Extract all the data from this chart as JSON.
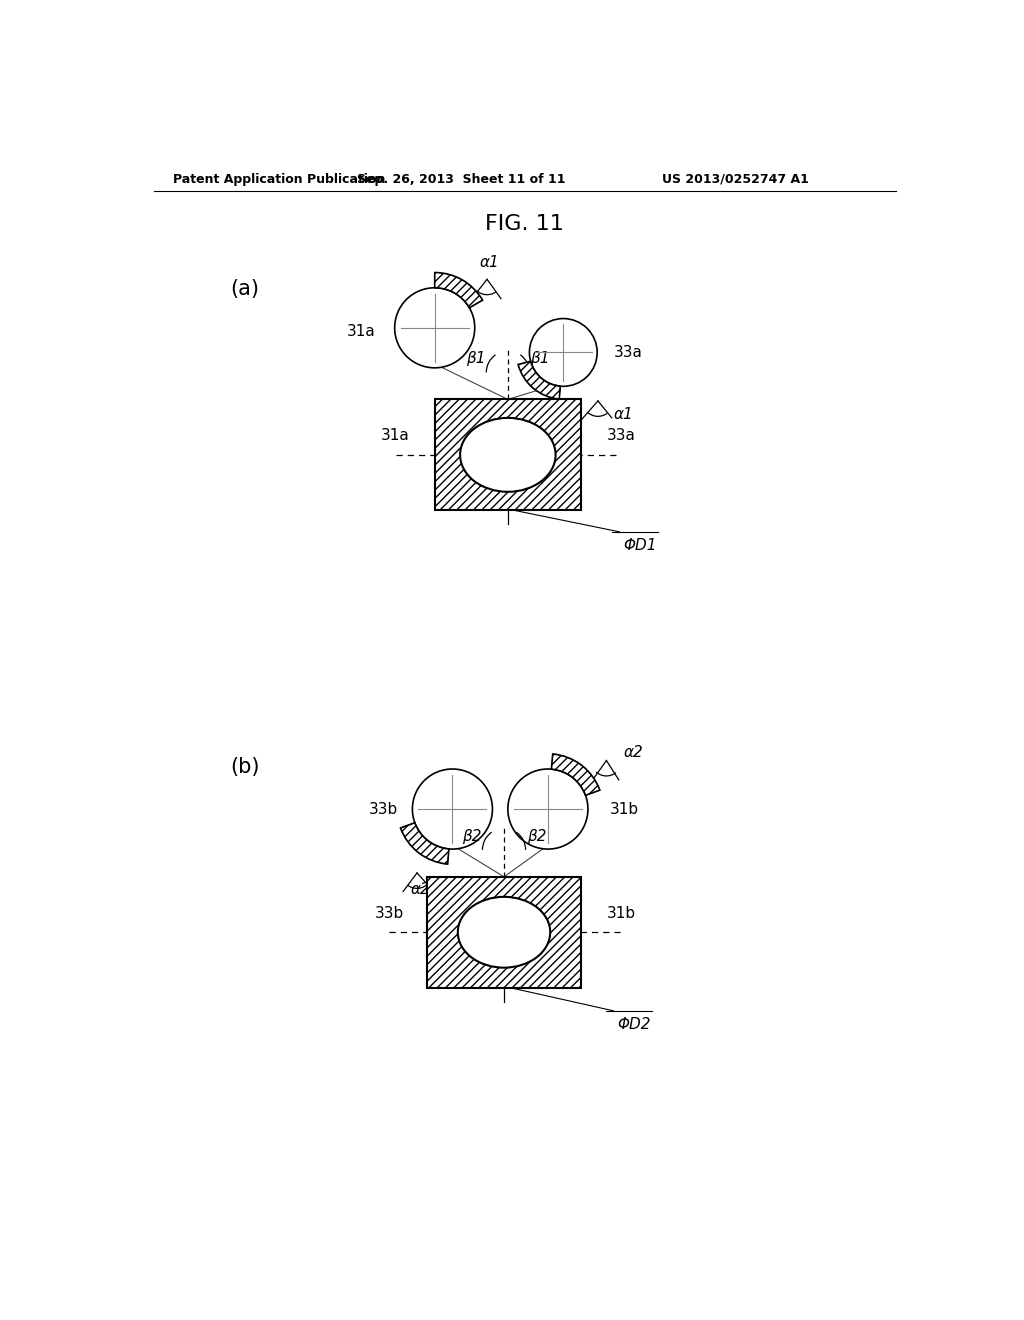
{
  "title": "FIG. 11",
  "header_left": "Patent Application Publication",
  "header_mid": "Sep. 26, 2013  Sheet 11 of 11",
  "header_right": "US 2013/0252747 A1",
  "bg_color": "#ffffff",
  "text_color": "#000000",
  "label_a": "(a)",
  "label_b": "(b)",
  "label_31a_top": "31a",
  "label_33a_top": "33a",
  "label_alpha1_top": "α1",
  "label_alpha1_bot": "α1",
  "label_beta1_left": "β1",
  "label_beta1_right": "β1",
  "label_31a_bot": "31a",
  "label_33a_bot": "33a",
  "label_phid1": "ΦD1",
  "label_33b_top": "33b",
  "label_31b_top": "31b",
  "label_alpha2_top": "α2",
  "label_alpha2_bot": "α2",
  "label_beta2_left": "β2",
  "label_beta2_right": "β2",
  "label_33b_bot": "33b",
  "label_31b_bot": "31b",
  "label_phid2": "ΦD2"
}
